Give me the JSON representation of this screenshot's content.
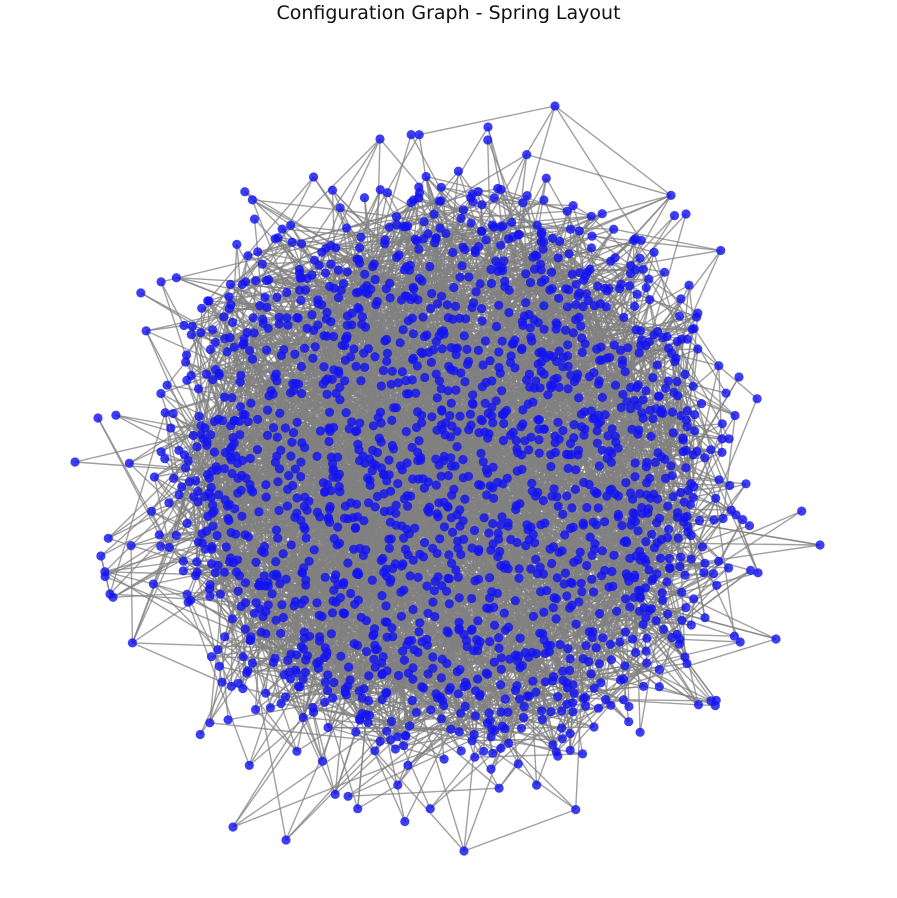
{
  "title": "Configuration Graph - Spring Layout",
  "graph": {
    "layout": "spring",
    "node_color": "#1414f0",
    "edge_color": "#808080",
    "axes": "off"
  }
}
